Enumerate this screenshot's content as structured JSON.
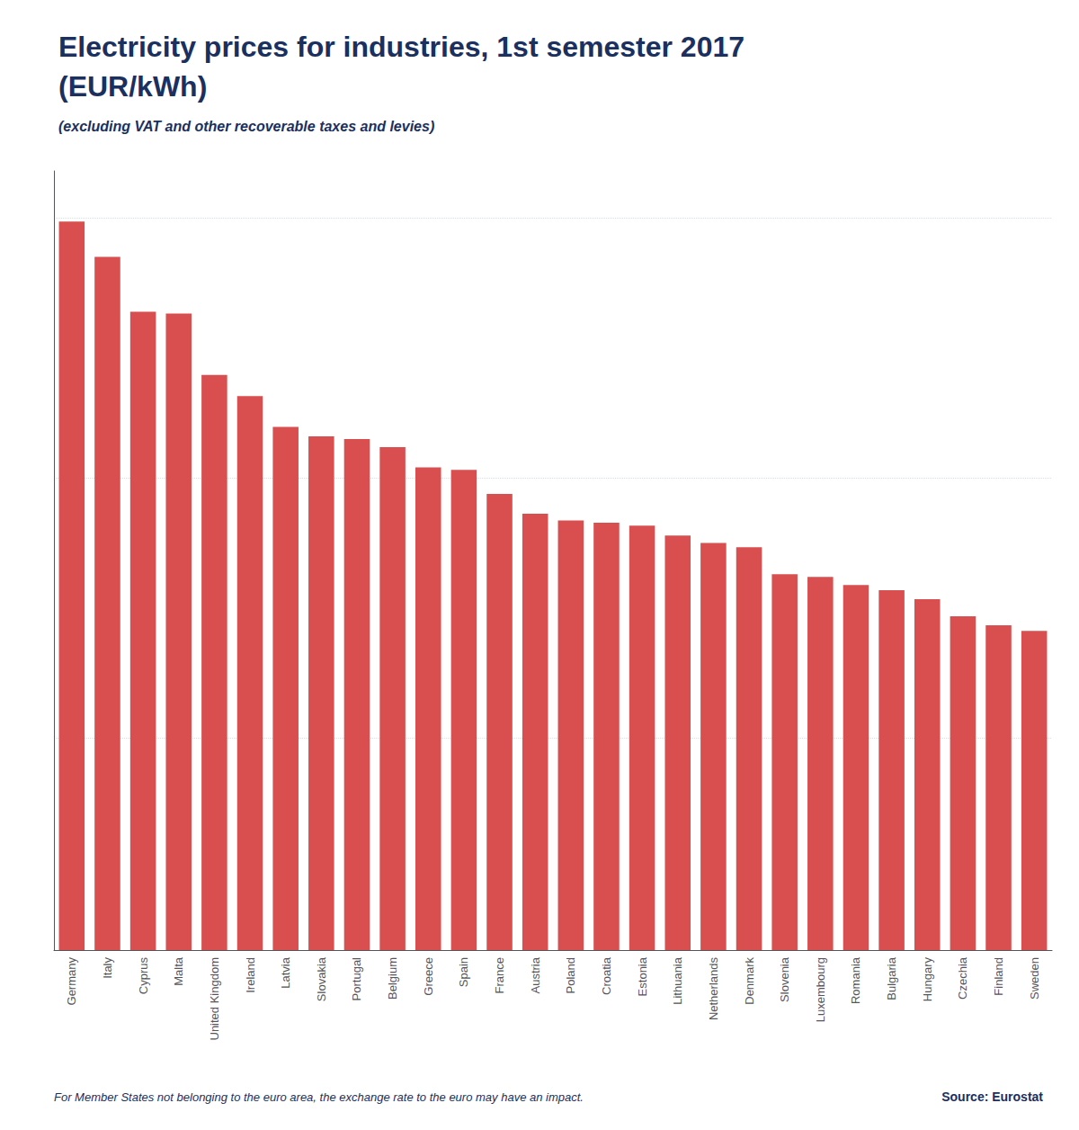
{
  "chart_data": {
    "type": "bar",
    "title": "Electricity prices for industries, 1st semester 2017\n(EUR/kWh)",
    "subtitle": "(excluding VAT and other recoverable taxes and levies)",
    "annotations": [
      "For Member States not belonging to the euro area, the exchange rate to the euro may have an impact.",
      "Source: Eurostat"
    ],
    "categories": [
      "Germany",
      "Italy",
      "Cyprus",
      "Malta",
      "United Kingdom",
      "Ireland",
      "Latvia",
      "Slovakia",
      "Portugal",
      "Belgium",
      "Greece",
      "Spain",
      "France",
      "Austria",
      "Poland",
      "Croatia",
      "Estonia",
      "Lithuania",
      "Netherlands",
      "Denmark",
      "Slovenia",
      "Luxembourg",
      "Romania",
      "Bulgaria",
      "Hungary",
      "Czechia",
      "Finland",
      "Sweden"
    ],
    "values": [
      0.1543,
      0.1468,
      0.1352,
      0.1348,
      0.1218,
      0.1173,
      0.1108,
      0.1088,
      0.1082,
      0.1065,
      0.1022,
      0.1017,
      0.0966,
      0.0924,
      0.091,
      0.0905,
      0.0899,
      0.0878,
      0.0862,
      0.0853,
      0.0796,
      0.079,
      0.0773,
      0.0762,
      0.0743,
      0.0707,
      0.0688,
      0.0676
    ],
    "color": "#d94f4f",
    "ylim": [
      0,
      0.165
    ],
    "yticks": [
      0.045,
      0.1,
      0.155
    ],
    "grid": true,
    "tick_labels": "x"
  }
}
